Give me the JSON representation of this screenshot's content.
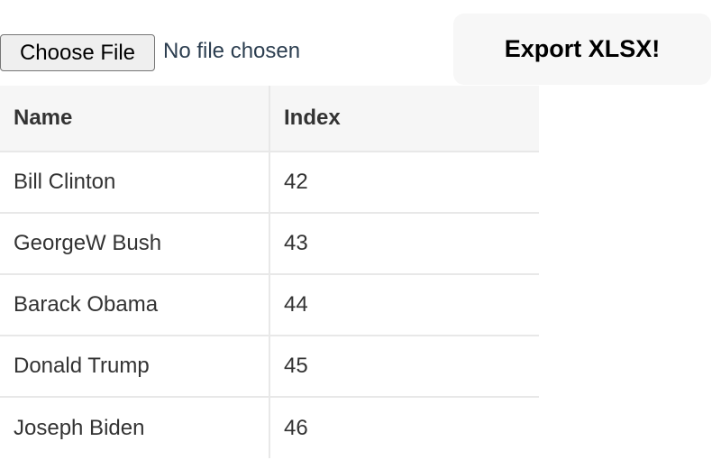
{
  "file_input": {
    "button_label": "Choose File",
    "status": "No file chosen"
  },
  "export_button": {
    "label": "Export XLSX!"
  },
  "table": {
    "headers": [
      "Name",
      "Index"
    ],
    "rows": [
      [
        "Bill Clinton",
        "42"
      ],
      [
        "GeorgeW Bush",
        "43"
      ],
      [
        "Barack Obama",
        "44"
      ],
      [
        "Donald Trump",
        "45"
      ],
      [
        "Joseph Biden",
        "46"
      ]
    ]
  }
}
